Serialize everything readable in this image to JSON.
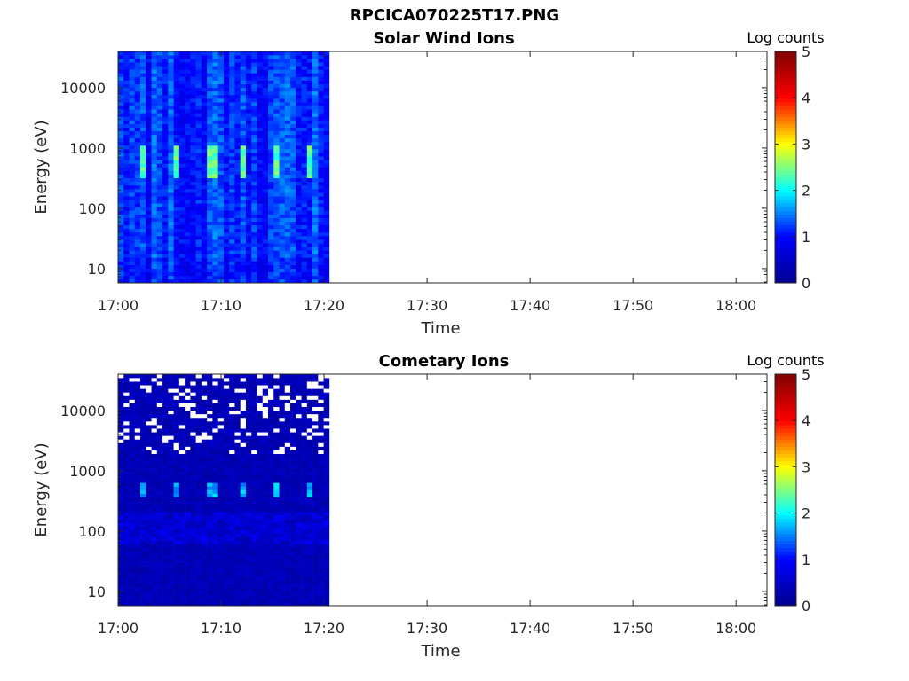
{
  "title": "RPCICA070225T17.PNG",
  "colors": {
    "axis": "#262626",
    "background": "#ffffff",
    "colormap": [
      "#00008f",
      "#0000ff",
      "#00ffff",
      "#ffff00",
      "#ff0000",
      "#800000"
    ]
  },
  "chart_data": [
    {
      "type": "heatmap",
      "title": "Solar Wind Ions",
      "xlabel": "Time",
      "ylabel": "Energy (eV)",
      "yscale": "log",
      "xlim": [
        "17:00",
        "18:03"
      ],
      "ylim": [
        5.8,
        40000
      ],
      "xticks": [
        "17:00",
        "17:10",
        "17:20",
        "17:30",
        "17:40",
        "17:50",
        "18:00"
      ],
      "yticks": [
        10,
        100,
        1000,
        10000
      ],
      "ytick_labels": [
        "10",
        "100",
        "1000",
        "10000"
      ],
      "data_time_range": [
        "17:00",
        "17:20:30"
      ],
      "colorbar": {
        "label": "Log counts",
        "min": 0,
        "max": 5,
        "ticks": [
          "0",
          "1",
          "2",
          "3",
          "4",
          "5"
        ]
      },
      "peaks": [
        {
          "time": "17:02:30",
          "energy_range": [
            300,
            1100
          ],
          "max_log_counts": 2.6
        },
        {
          "time": "17:05:45",
          "energy_range": [
            300,
            1100
          ],
          "max_log_counts": 2.6
        },
        {
          "time": "17:09:00",
          "energy_range": [
            300,
            1100
          ],
          "max_log_counts": 2.6
        },
        {
          "time": "17:12:10",
          "energy_range": [
            300,
            1100
          ],
          "max_log_counts": 2.6
        },
        {
          "time": "17:15:25",
          "energy_range": [
            300,
            1100
          ],
          "max_log_counts": 2.6
        },
        {
          "time": "17:18:40",
          "energy_range": [
            300,
            1100
          ],
          "max_log_counts": 2.6
        }
      ],
      "background_log_counts": 0.9
    },
    {
      "type": "heatmap",
      "title": "Cometary Ions",
      "xlabel": "Time",
      "ylabel": "Energy (eV)",
      "yscale": "log",
      "xlim": [
        "17:00",
        "18:03"
      ],
      "ylim": [
        5.8,
        40000
      ],
      "xticks": [
        "17:00",
        "17:10",
        "17:20",
        "17:30",
        "17:40",
        "17:50",
        "18:00"
      ],
      "yticks": [
        10,
        100,
        1000,
        10000
      ],
      "ytick_labels": [
        "10",
        "100",
        "1000",
        "10000"
      ],
      "data_time_range": [
        "17:00",
        "17:20:30"
      ],
      "colorbar": {
        "label": "Log counts",
        "min": 0,
        "max": 5,
        "ticks": [
          "0",
          "1",
          "2",
          "3",
          "4",
          "5"
        ]
      },
      "peaks": [
        {
          "time": "17:02:30",
          "energy_range": [
            380,
            650
          ],
          "max_log_counts": 1.9
        },
        {
          "time": "17:05:45",
          "energy_range": [
            380,
            650
          ],
          "max_log_counts": 1.9
        },
        {
          "time": "17:09:00",
          "energy_range": [
            380,
            650
          ],
          "max_log_counts": 1.9
        },
        {
          "time": "17:12:10",
          "energy_range": [
            380,
            650
          ],
          "max_log_counts": 1.9
        },
        {
          "time": "17:15:25",
          "energy_range": [
            380,
            650
          ],
          "max_log_counts": 1.9
        },
        {
          "time": "17:18:40",
          "energy_range": [
            380,
            650
          ],
          "max_log_counts": 1.9
        }
      ],
      "background_log_counts": 0.2,
      "empty_bins_note": "white (no data) bins frequent above ~2000 eV"
    }
  ]
}
